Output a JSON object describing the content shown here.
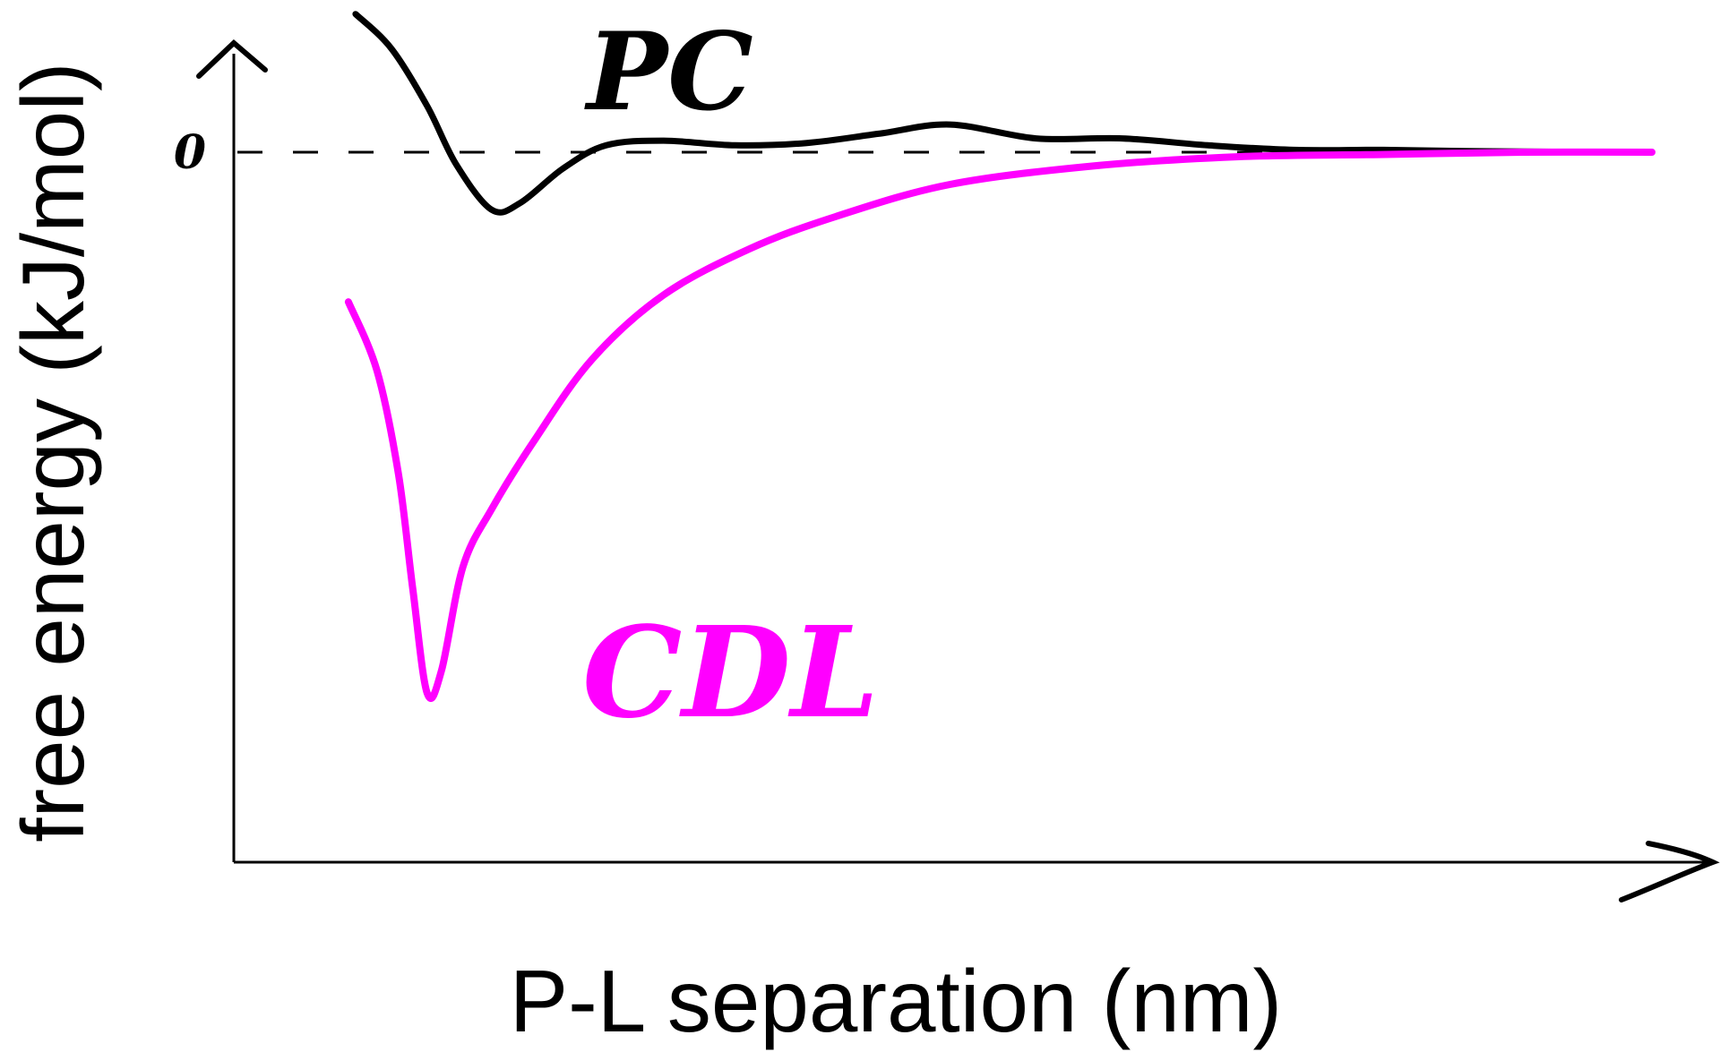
{
  "chart_data": {
    "type": "line",
    "title": "",
    "xlabel": "P-L separation (nm)",
    "ylabel": "free energy (kJ/mol)",
    "y_tick_labels": [
      "0"
    ],
    "x_ticks": [],
    "xlim": [
      0,
      10
    ],
    "ylim": [
      -25,
      6
    ],
    "grid": false,
    "legend": "none",
    "zero_reference_line": {
      "style": "dashed",
      "y": 0
    },
    "series": [
      {
        "name": "PC",
        "color": "#000000",
        "x": [
          0.85,
          1.1,
          1.35,
          1.55,
          1.8,
          2.0,
          2.3,
          2.6,
          3.0,
          3.5,
          4.0,
          4.5,
          5.0,
          5.6,
          6.2,
          6.8,
          7.4,
          8.0,
          8.6,
          9.2,
          9.9
        ],
        "y": [
          6,
          4.5,
          2.0,
          -0.5,
          -2.5,
          -2.2,
          -0.7,
          0.3,
          0.5,
          0.3,
          0.4,
          0.8,
          1.2,
          0.6,
          0.6,
          0.3,
          0.1,
          0.1,
          0.05,
          0.02,
          0.0
        ]
      },
      {
        "name": "CDL",
        "color": "#ff00ff",
        "x": [
          0.8,
          1.0,
          1.15,
          1.25,
          1.35,
          1.45,
          1.6,
          1.8,
          2.1,
          2.5,
          3.0,
          3.6,
          4.2,
          5.0,
          6.0,
          7.0,
          8.0,
          9.0,
          9.9
        ],
        "y": [
          -6.5,
          -9.5,
          -14,
          -19,
          -23.5,
          -22.5,
          -18,
          -15.5,
          -12.5,
          -9,
          -6.2,
          -4.2,
          -2.8,
          -1.4,
          -0.6,
          -0.2,
          -0.1,
          0.0,
          0.0
        ]
      }
    ],
    "annotations": [
      {
        "text": "PC",
        "color": "#000000"
      },
      {
        "text": "CDL",
        "color": "#ff00ff"
      }
    ]
  }
}
